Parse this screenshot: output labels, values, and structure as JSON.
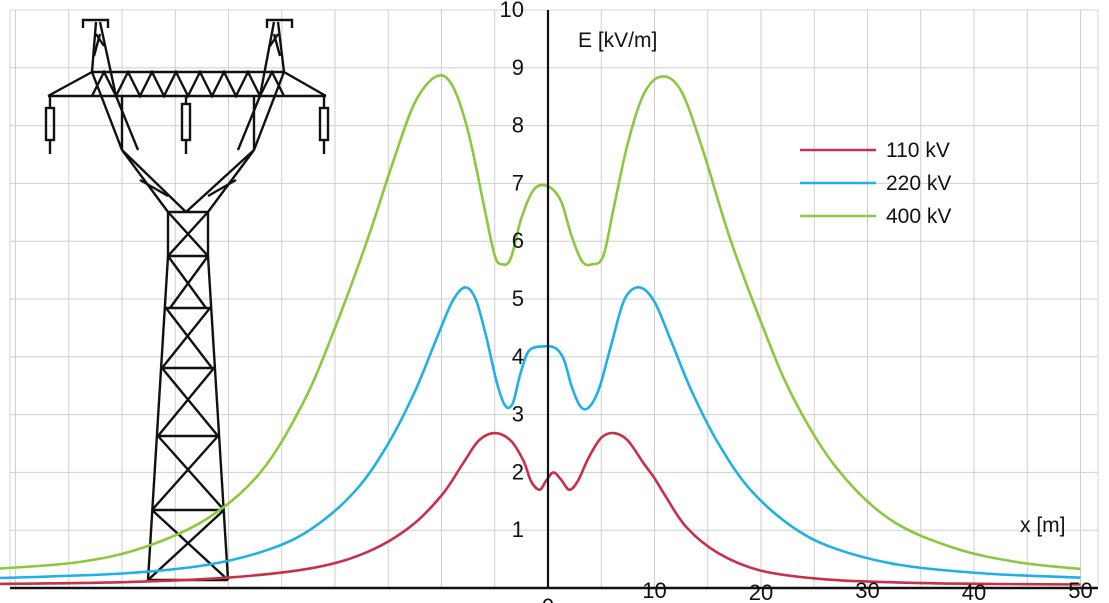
{
  "chart_data": {
    "type": "line",
    "title": "",
    "ylabel": "E [kV/m]",
    "xlabel": "x [m]",
    "xlim": [
      -52,
      50
    ],
    "ylim": [
      0,
      10
    ],
    "grid": true,
    "legend_position": "right",
    "x_ticks": [
      0,
      10,
      20,
      30,
      40,
      50
    ],
    "y_ticks": [
      1,
      2,
      3,
      4,
      5,
      6,
      7,
      8,
      9,
      10
    ],
    "series": [
      {
        "name": "110 kV",
        "color": "#c8304a",
        "points": [
          [
            -52,
            0.07
          ],
          [
            -40,
            0.1
          ],
          [
            -30,
            0.18
          ],
          [
            -22,
            0.35
          ],
          [
            -17,
            0.62
          ],
          [
            -13,
            1.05
          ],
          [
            -10,
            1.6
          ],
          [
            -8,
            2.15
          ],
          [
            -6.5,
            2.55
          ],
          [
            -5,
            2.68
          ],
          [
            -3.5,
            2.55
          ],
          [
            -2.3,
            2.2
          ],
          [
            -1.6,
            1.85
          ],
          [
            -0.8,
            1.7
          ],
          [
            -0.2,
            1.85
          ],
          [
            0.5,
            2.0
          ],
          [
            1.2,
            1.88
          ],
          [
            2,
            1.7
          ],
          [
            2.8,
            1.85
          ],
          [
            3.8,
            2.25
          ],
          [
            5,
            2.6
          ],
          [
            6.2,
            2.68
          ],
          [
            7.5,
            2.55
          ],
          [
            9,
            2.15
          ],
          [
            10,
            1.9
          ],
          [
            11,
            1.6
          ],
          [
            13,
            1.05
          ],
          [
            16,
            0.6
          ],
          [
            20,
            0.3
          ],
          [
            26,
            0.15
          ],
          [
            34,
            0.09
          ],
          [
            42,
            0.07
          ],
          [
            50,
            0.06
          ]
        ]
      },
      {
        "name": "220 kV",
        "color": "#1eb0e6",
        "points": [
          [
            -52,
            0.17
          ],
          [
            -40,
            0.25
          ],
          [
            -32,
            0.4
          ],
          [
            -26,
            0.68
          ],
          [
            -22,
            1.05
          ],
          [
            -18,
            1.7
          ],
          [
            -15,
            2.5
          ],
          [
            -12.5,
            3.4
          ],
          [
            -10.5,
            4.3
          ],
          [
            -9,
            4.95
          ],
          [
            -7.8,
            5.2
          ],
          [
            -6.8,
            5.0
          ],
          [
            -5.8,
            4.35
          ],
          [
            -4.8,
            3.55
          ],
          [
            -4,
            3.15
          ],
          [
            -3.3,
            3.2
          ],
          [
            -2.6,
            3.7
          ],
          [
            -1.8,
            4.1
          ],
          [
            -0.5,
            4.18
          ],
          [
            0.7,
            4.15
          ],
          [
            1.5,
            3.95
          ],
          [
            2.2,
            3.5
          ],
          [
            3,
            3.15
          ],
          [
            3.8,
            3.12
          ],
          [
            4.8,
            3.45
          ],
          [
            6,
            4.25
          ],
          [
            7.2,
            5.0
          ],
          [
            8.6,
            5.2
          ],
          [
            10,
            4.95
          ],
          [
            11.5,
            4.3
          ],
          [
            13.5,
            3.4
          ],
          [
            16,
            2.5
          ],
          [
            19,
            1.7
          ],
          [
            23,
            1.05
          ],
          [
            27,
            0.68
          ],
          [
            33,
            0.4
          ],
          [
            41,
            0.25
          ],
          [
            50,
            0.18
          ]
        ]
      },
      {
        "name": "400 kV",
        "color": "#8cc83c",
        "points": [
          [
            -52,
            0.33
          ],
          [
            -44,
            0.45
          ],
          [
            -38,
            0.7
          ],
          [
            -32,
            1.2
          ],
          [
            -27,
            2.0
          ],
          [
            -23,
            3.2
          ],
          [
            -20,
            4.5
          ],
          [
            -17,
            6.0
          ],
          [
            -14.5,
            7.4
          ],
          [
            -12.5,
            8.4
          ],
          [
            -10.5,
            8.85
          ],
          [
            -9,
            8.7
          ],
          [
            -7.5,
            7.9
          ],
          [
            -6,
            6.6
          ],
          [
            -5,
            5.75
          ],
          [
            -4.3,
            5.6
          ],
          [
            -3.5,
            5.7
          ],
          [
            -2.5,
            6.4
          ],
          [
            -1.3,
            6.9
          ],
          [
            0,
            6.95
          ],
          [
            1.2,
            6.7
          ],
          [
            2.2,
            6.1
          ],
          [
            3.2,
            5.65
          ],
          [
            4.2,
            5.6
          ],
          [
            5.2,
            5.75
          ],
          [
            6.2,
            6.6
          ],
          [
            7.5,
            7.7
          ],
          [
            9,
            8.55
          ],
          [
            10.7,
            8.85
          ],
          [
            12.5,
            8.6
          ],
          [
            14.5,
            7.6
          ],
          [
            17,
            6.1
          ],
          [
            20,
            4.6
          ],
          [
            23,
            3.3
          ],
          [
            27,
            2.1
          ],
          [
            32,
            1.2
          ],
          [
            38,
            0.7
          ],
          [
            44,
            0.45
          ],
          [
            50,
            0.33
          ]
        ]
      }
    ]
  }
}
